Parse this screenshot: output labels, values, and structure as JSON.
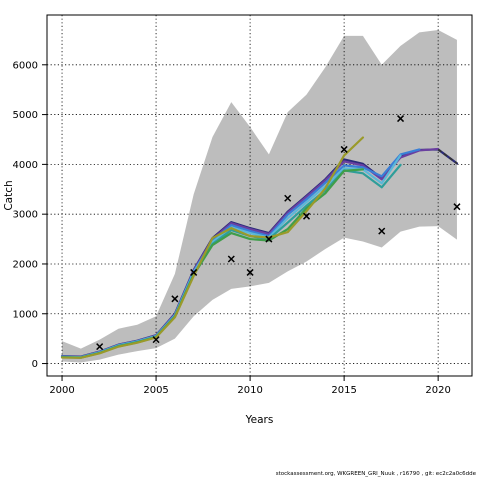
{
  "chart_data": {
    "type": "line",
    "title": "",
    "xlabel": "Years",
    "ylabel": "Catch",
    "xlim": [
      1999.2,
      2021.8
    ],
    "ylim": [
      -250,
      7000
    ],
    "xticks": [
      2000,
      2005,
      2010,
      2015,
      2020
    ],
    "yticks": [
      0,
      1000,
      2000,
      3000,
      4000,
      5000,
      6000
    ],
    "grid": true,
    "confidence_band": {
      "x": [
        2000,
        2001,
        2002,
        2003,
        2004,
        2005,
        2006,
        2007,
        2008,
        2009,
        2010,
        2011,
        2012,
        2013,
        2014,
        2015,
        2016,
        2017,
        2018,
        2019,
        2020,
        2021
      ],
      "upper": [
        450,
        300,
        480,
        700,
        780,
        950,
        1800,
        3400,
        4550,
        5250,
        4750,
        4200,
        5050,
        5400,
        5950,
        6580,
        6580,
        6000,
        6380,
        6650,
        6700,
        6500
      ],
      "lower": [
        40,
        20,
        80,
        180,
        250,
        310,
        500,
        950,
        1280,
        1500,
        1550,
        1620,
        1850,
        2050,
        2300,
        2530,
        2450,
        2330,
        2650,
        2750,
        2760,
        2490
      ]
    },
    "observations": {
      "x": [
        2002,
        2005,
        2006,
        2007,
        2009,
        2010,
        2011,
        2012,
        2013,
        2015,
        2017,
        2018,
        2021
      ],
      "y": [
        340,
        480,
        1300,
        1830,
        2100,
        1830,
        2500,
        3320,
        2960,
        4300,
        2660,
        4920,
        3150
      ]
    },
    "series": [
      {
        "color": "#2b2b7a",
        "x": [
          2000,
          2001,
          2002,
          2003,
          2004,
          2005,
          2006,
          2007,
          2008,
          2009,
          2010,
          2011,
          2012,
          2013,
          2014,
          2015,
          2016,
          2017,
          2018,
          2019,
          2020,
          2021
        ],
        "values": [
          150,
          140,
          240,
          380,
          460,
          570,
          1000,
          1880,
          2520,
          2840,
          2720,
          2620,
          3050,
          3370,
          3700,
          4100,
          4010,
          3720,
          4160,
          4290,
          4300,
          4020
        ]
      },
      {
        "color": "#6a3fa0",
        "x": [
          2000,
          2001,
          2002,
          2003,
          2004,
          2005,
          2006,
          2007,
          2008,
          2009,
          2010,
          2011,
          2012,
          2013,
          2014,
          2015,
          2016,
          2017,
          2018,
          2019,
          2020
        ],
        "values": [
          145,
          135,
          235,
          375,
          455,
          565,
          990,
          1870,
          2500,
          2820,
          2700,
          2600,
          3030,
          3350,
          3680,
          4060,
          3980,
          3700,
          4140,
          4280,
          4310
        ]
      },
      {
        "color": "#3a7fd6",
        "x": [
          2000,
          2001,
          2002,
          2003,
          2004,
          2005,
          2006,
          2007,
          2008,
          2009,
          2010,
          2011,
          2012,
          2013,
          2014,
          2015,
          2016,
          2017,
          2018,
          2019
        ],
        "values": [
          140,
          130,
          230,
          370,
          450,
          555,
          975,
          1850,
          2470,
          2780,
          2660,
          2560,
          2990,
          3300,
          3630,
          3980,
          3940,
          3760,
          4200,
          4300
        ]
      },
      {
        "color": "#5bb8d8",
        "x": [
          2000,
          2001,
          2002,
          2003,
          2004,
          2005,
          2006,
          2007,
          2008,
          2009,
          2010,
          2011,
          2012,
          2013,
          2014,
          2015,
          2016,
          2017,
          2018
        ],
        "values": [
          135,
          128,
          225,
          365,
          445,
          550,
          965,
          1830,
          2440,
          2730,
          2620,
          2530,
          2920,
          3240,
          3560,
          3920,
          3900,
          3620,
          4180
        ]
      },
      {
        "color": "#2e9e9a",
        "x": [
          2000,
          2001,
          2002,
          2003,
          2004,
          2005,
          2006,
          2007,
          2008,
          2009,
          2010,
          2011,
          2012,
          2013,
          2014,
          2015,
          2016,
          2017,
          2018
        ],
        "values": [
          130,
          122,
          215,
          355,
          435,
          540,
          950,
          1800,
          2400,
          2680,
          2560,
          2500,
          2830,
          3170,
          3480,
          3880,
          3820,
          3540,
          3990
        ]
      },
      {
        "color": "#3f9e4a",
        "x": [
          2000,
          2001,
          2002,
          2003,
          2004,
          2005,
          2006,
          2007,
          2008,
          2009,
          2010,
          2011,
          2012,
          2013,
          2014,
          2015,
          2016
        ],
        "values": [
          125,
          118,
          210,
          345,
          425,
          530,
          940,
          1780,
          2380,
          2620,
          2500,
          2470,
          2700,
          3120,
          3420,
          3870,
          3900
        ]
      },
      {
        "color": "#9a9a2a",
        "x": [
          2000,
          2001,
          2002,
          2003,
          2004,
          2005,
          2006,
          2007,
          2008,
          2009,
          2010,
          2011,
          2012,
          2013,
          2014,
          2015,
          2016
        ],
        "values": [
          120,
          115,
          205,
          340,
          420,
          525,
          930,
          1760,
          2520,
          2720,
          2560,
          2530,
          2640,
          3060,
          3520,
          4180,
          4540
        ]
      }
    ],
    "projection": {
      "color": "#333333",
      "x": [
        2020,
        2021
      ],
      "values": [
        4300,
        4020
      ]
    }
  },
  "footer": "stockassessment.org, WKGREEN_GRI_Nuuk , r16790 , git: ec2c2a0c6dde"
}
